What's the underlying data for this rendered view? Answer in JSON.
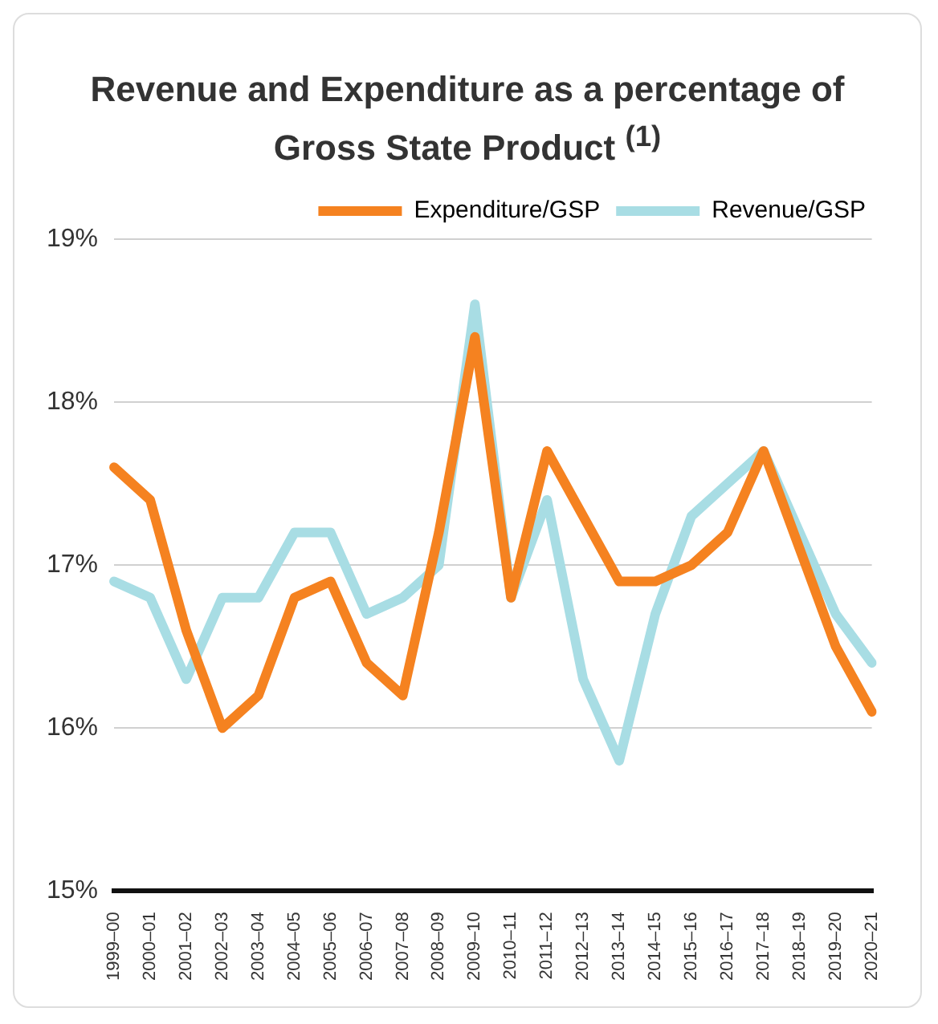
{
  "chart_data": {
    "type": "line",
    "title": "Revenue and Expenditure as a percentage of Gross State Product $^{(1)}$",
    "categories": [
      "1999–00",
      "2000–01",
      "2001–02",
      "2002–03",
      "2003–04",
      "2004–05",
      "2005–06",
      "2006–07",
      "2007–08",
      "2008–09",
      "2009–10",
      "2010–11",
      "2011–12",
      "2012–13",
      "2013–14",
      "2014–15",
      "2015–16",
      "2016–17",
      "2017–18",
      "2018–19",
      "2019–20",
      "2020–21"
    ],
    "series": [
      {
        "name": "Expenditure/GSP",
        "color": "#f58220",
        "values": [
          17.6,
          17.4,
          16.6,
          16.0,
          16.2,
          16.8,
          16.9,
          16.4,
          16.2,
          17.2,
          18.4,
          16.8,
          17.7,
          17.3,
          16.9,
          16.9,
          17.0,
          17.2,
          17.7,
          17.1,
          16.5,
          16.1
        ]
      },
      {
        "name": "Revenue/GSP",
        "color": "#a8dde4",
        "values": [
          16.9,
          16.8,
          16.3,
          16.8,
          16.8,
          17.2,
          17.2,
          16.7,
          16.8,
          17.0,
          18.6,
          16.8,
          17.4,
          16.3,
          15.8,
          16.7,
          17.3,
          17.5,
          17.7,
          17.2,
          16.7,
          16.4
        ]
      }
    ],
    "ylim": [
      15,
      19
    ],
    "yticks": [
      {
        "value": 15,
        "label": "15%"
      },
      {
        "value": 16,
        "label": "16%"
      },
      {
        "value": 17,
        "label": "17%"
      },
      {
        "value": 18,
        "label": "18%"
      },
      {
        "value": 19,
        "label": "19%"
      }
    ],
    "grid": "y",
    "legend": "top",
    "marker": "none",
    "line_style": "solid"
  }
}
